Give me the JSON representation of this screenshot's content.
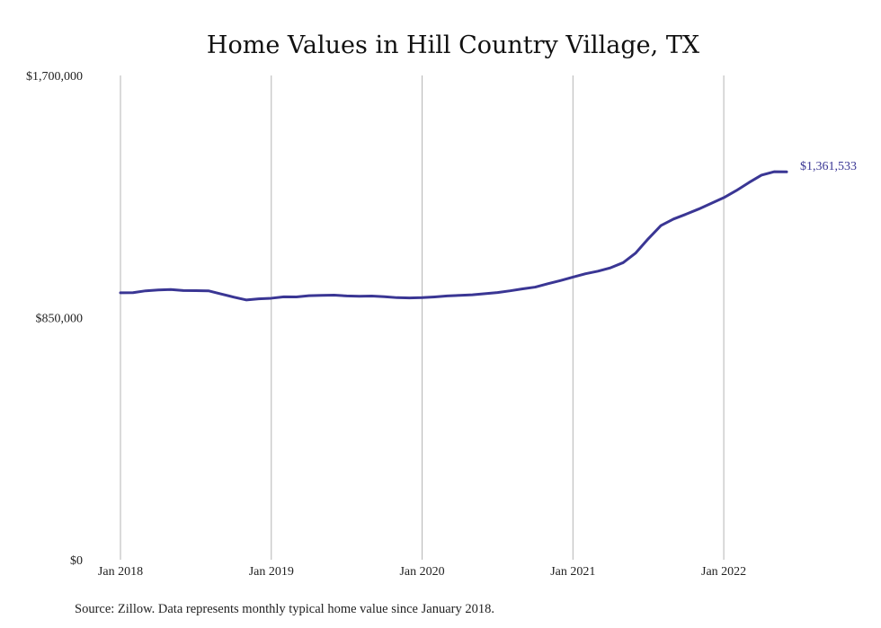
{
  "chart_data": {
    "type": "line",
    "title": "Home Values in Hill Country Village, TX",
    "xlabel": "",
    "ylabel": "",
    "ylim": [
      0,
      1700000
    ],
    "y_ticks": [
      {
        "value": 0,
        "label": "$0"
      },
      {
        "value": 850000,
        "label": "$850,000"
      },
      {
        "value": 1700000,
        "label": "$1,700,000"
      }
    ],
    "x_ticks": [
      {
        "index": 0,
        "label": "Jan 2018"
      },
      {
        "index": 12,
        "label": "Jan 2019"
      },
      {
        "index": 24,
        "label": "Jan 2020"
      },
      {
        "index": 36,
        "label": "Jan 2021"
      },
      {
        "index": 48,
        "label": "Jan 2022"
      }
    ],
    "grid": "vertical",
    "color": "#3a3694",
    "series": [
      {
        "values": [
          937000,
          937500,
          944000,
          947000,
          948500,
          945000,
          944500,
          944000,
          933000,
          922000,
          912000,
          916000,
          918000,
          923000,
          922500,
          927000,
          928000,
          929000,
          926000,
          925000,
          925500,
          923500,
          920000,
          919000,
          920000,
          922500,
          926000,
          928000,
          930000,
          934000,
          938000,
          944000,
          951000,
          957000,
          969000,
          980000,
          992000,
          1004000,
          1013000,
          1025000,
          1043000,
          1077000,
          1127000,
          1173000,
          1196000,
          1213000,
          1231000,
          1251000,
          1271000,
          1296000,
          1324000,
          1350000,
          1362000,
          1361533
        ]
      }
    ],
    "end_label": "$1,361,533"
  },
  "source": "Source: Zillow. Data represents monthly typical home value since January 2018."
}
